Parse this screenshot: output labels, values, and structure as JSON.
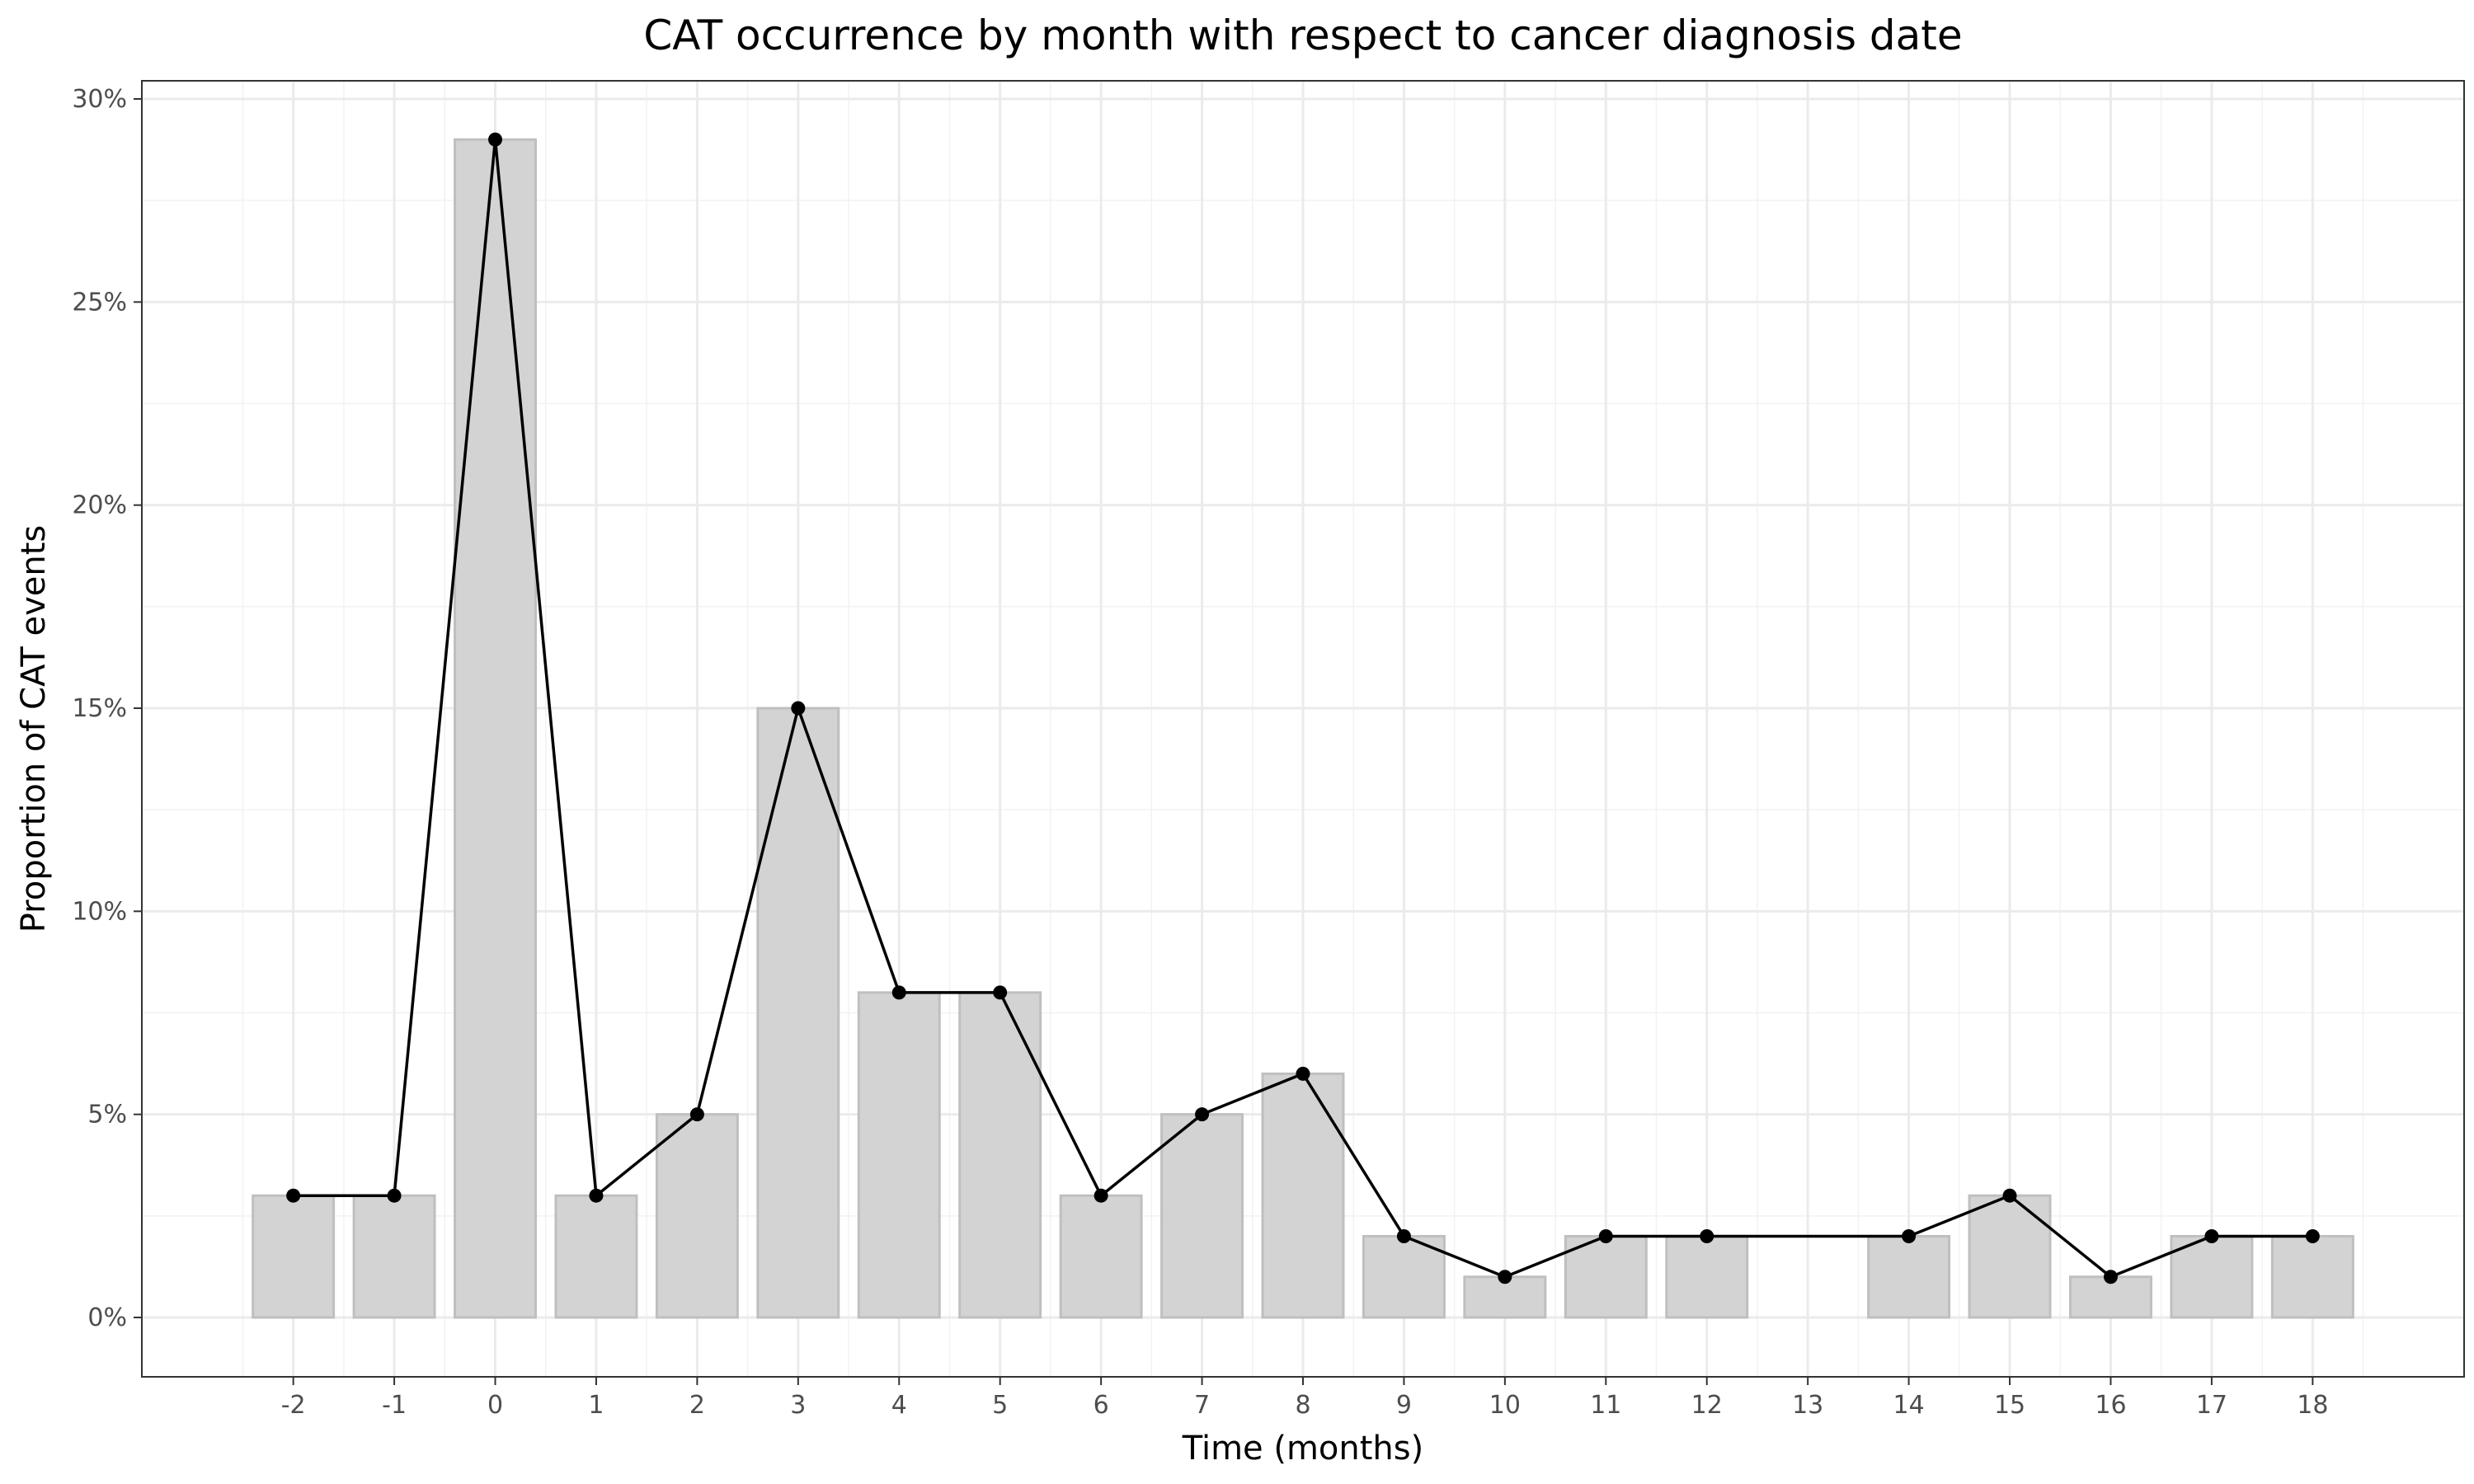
{
  "chart_data": {
    "type": "bar",
    "title": "CAT occurrence by month with respect to cancer diagnosis date",
    "xlabel": "Time (months)",
    "ylabel": "Proportion of CAT events",
    "x_ticks": [
      "-2",
      "-1",
      "0",
      "1",
      "2",
      "3",
      "4",
      "5",
      "6",
      "7",
      "8",
      "9",
      "10",
      "11",
      "12",
      "13",
      "14",
      "15",
      "16",
      "17",
      "18"
    ],
    "y_ticks": [
      "0%",
      "5%",
      "10%",
      "15%",
      "20%",
      "25%",
      "30%"
    ],
    "ylim": [
      0,
      30
    ],
    "grid": true,
    "theme": "white background with light grey gridlines and dark panel border",
    "bar_color": "#d3d3d3",
    "bar_edge_color": "#bfbfbf",
    "line_color": "#000000",
    "points": [
      {
        "x": -2,
        "y": 3
      },
      {
        "x": -1,
        "y": 3
      },
      {
        "x": 0,
        "y": 29
      },
      {
        "x": 1,
        "y": 3
      },
      {
        "x": 2,
        "y": 5
      },
      {
        "x": 3,
        "y": 15
      },
      {
        "x": 4,
        "y": 8
      },
      {
        "x": 5,
        "y": 8
      },
      {
        "x": 6,
        "y": 3
      },
      {
        "x": 7,
        "y": 5
      },
      {
        "x": 8,
        "y": 6
      },
      {
        "x": 9,
        "y": 2
      },
      {
        "x": 10,
        "y": 1
      },
      {
        "x": 11,
        "y": 2
      },
      {
        "x": 12,
        "y": 2
      },
      {
        "x": 14,
        "y": 2
      },
      {
        "x": 15,
        "y": 3
      },
      {
        "x": 16,
        "y": 1
      },
      {
        "x": 17,
        "y": 2
      },
      {
        "x": 18,
        "y": 2
      }
    ]
  }
}
